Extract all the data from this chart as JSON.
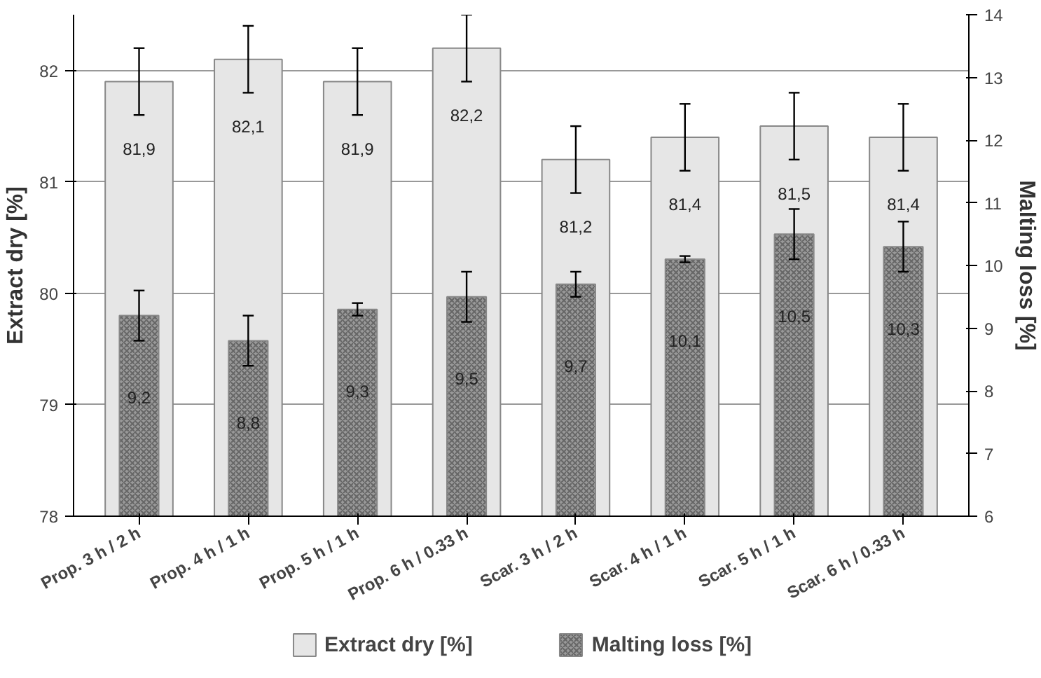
{
  "chart_data": {
    "type": "bar",
    "ylabel": "Extract dry [%]",
    "y2label": "Malting loss [%]",
    "categories": [
      "Prop. 3 h / 2 h",
      "Prop. 4 h / 1 h",
      "Prop. 5 h / 1 h",
      "Prop. 6 h / 0.33 h",
      "Scar. 3 h / 2 h",
      "Scar. 4 h / 1 h",
      "Scar. 5 h / 1 h",
      "Scar. 6 h / 0.33 h"
    ],
    "series": [
      {
        "name": "Extract dry [%]",
        "color": "#e6e6e6",
        "values": [
          81.9,
          82.1,
          81.9,
          82.2,
          81.2,
          81.4,
          81.5,
          81.4
        ],
        "errors": [
          0.3,
          0.3,
          0.3,
          0.3,
          0.3,
          0.3,
          0.3,
          0.3
        ],
        "value_labels": [
          "81,9",
          "82,1",
          "81,9",
          "82,2",
          "81,2",
          "81,4",
          "81,5",
          "81,4"
        ]
      },
      {
        "name": "Malting loss [%]",
        "color": "#999999",
        "axis": "y2",
        "values": [
          9.2,
          8.8,
          9.3,
          9.5,
          9.7,
          10.1,
          10.5,
          10.3
        ],
        "errors": [
          0.4,
          0.4,
          0.1,
          0.4,
          0.2,
          0.05,
          0.4,
          0.4
        ],
        "value_labels": [
          "9,2",
          "8,8",
          "9,3",
          "9,5",
          "9,7",
          "10,1",
          "10,5",
          "10,3"
        ]
      }
    ],
    "ylim": [
      78,
      82.5
    ],
    "yticks": [
      78,
      79,
      80,
      81,
      82
    ],
    "y2lim": [
      6,
      14
    ],
    "y2ticks": [
      6,
      7,
      8,
      9,
      10,
      11,
      12,
      13,
      14
    ],
    "grid": "y",
    "legend": "bottom"
  }
}
